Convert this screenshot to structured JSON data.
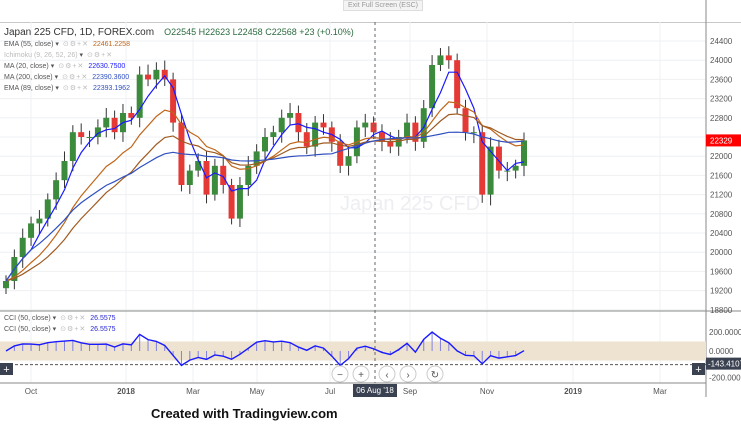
{
  "top": {
    "exit_label": "Exit Full Screen (ESC)"
  },
  "header": {
    "symbol": "Japan 225 CFD, 1D, FOREX.com",
    "open": "O22545",
    "high": "H22623",
    "low": "L22458",
    "close": "C22568",
    "change": "+23 (+0.10%)",
    "watermark": "Japan 225 CFD"
  },
  "indicators": [
    {
      "label": "EMA (55, close)",
      "value": "22461.2258",
      "color": "#c0661a"
    },
    {
      "label": "Ichimoku (9, 26, 52, 26)",
      "value": "",
      "color": "#bbbbbb"
    },
    {
      "label": "MA (20, close)",
      "value": "22630.7500",
      "color": "#1a1aff"
    },
    {
      "label": "MA (200, close)",
      "value": "22390.3600",
      "color": "#3050c0"
    },
    {
      "label": "EMA (89, close)",
      "value": "22393.1962",
      "color": "#3050c0"
    }
  ],
  "cci_legend": [
    {
      "label": "CCI (50, close)",
      "value": "26.5575"
    },
    {
      "label": "CCI (50, close)",
      "value": "26.5575"
    }
  ],
  "price_axis": {
    "ticks": [
      "24400",
      "24000",
      "23600",
      "23200",
      "22800",
      "22000",
      "21600",
      "21200",
      "20800",
      "20400",
      "20000",
      "19600",
      "19200",
      "18800"
    ],
    "last_price": "22329",
    "last_color": "#ff0000"
  },
  "cci_axis": {
    "ticks": [
      "200.0000",
      "0.0000",
      "-200.0000"
    ],
    "current": "-143.4107"
  },
  "time_axis": {
    "labels": [
      "Oct",
      "2018",
      "Mar",
      "May",
      "Jul",
      "Sep",
      "Nov",
      "2019",
      "Mar"
    ],
    "crosshair": "06 Aug '18"
  },
  "caption": "Created with Tradingview.com",
  "chart_data": {
    "type": "candlestick",
    "title": "Japan 225 CFD, 1D, FOREX.com",
    "ylim": [
      18800,
      24600
    ],
    "period": "weekly approx. Sep 2017 - Nov 2018",
    "closes": [
      19400,
      19900,
      20300,
      20600,
      20700,
      21100,
      21500,
      21900,
      22500,
      22400,
      22400,
      22600,
      22800,
      22500,
      22900,
      22800,
      23700,
      23600,
      23800,
      23600,
      22700,
      21400,
      21700,
      21900,
      21200,
      21800,
      21400,
      20700,
      21400,
      21800,
      22100,
      22400,
      22500,
      22800,
      22900,
      22500,
      22200,
      22700,
      22600,
      22300,
      21800,
      22000,
      22600,
      22700,
      22500,
      22300,
      22200,
      22400,
      22700,
      22300,
      23000,
      23900,
      24100,
      24000,
      23000,
      22500,
      22500,
      21200,
      22200,
      21700,
      21700,
      21800,
      22329
    ],
    "cci_band": [
      -100,
      100
    ],
    "cci_ylim": [
      -250,
      350
    ]
  }
}
